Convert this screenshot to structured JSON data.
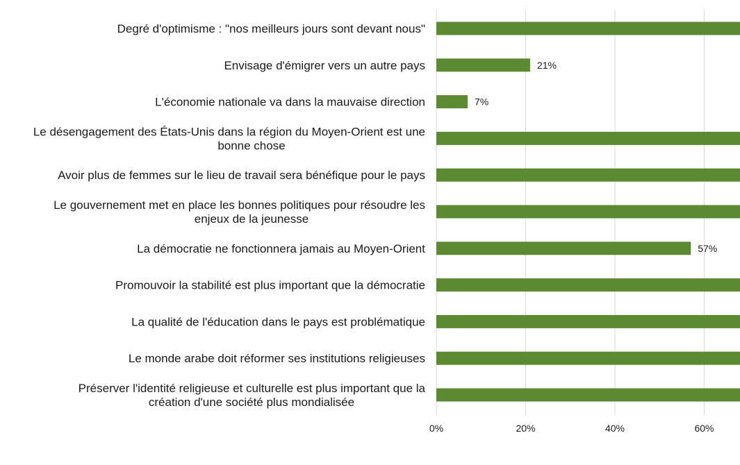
{
  "chart_data": {
    "type": "bar",
    "orientation": "horizontal",
    "categories": [
      "Degré d'optimisme : \"nos meilleurs jours sont devant nous\"",
      "Envisage d'émigrer vers un autre pays",
      "L'économie nationale va dans la mauvaise direction",
      "Le désengagement des États-Unis dans la région du Moyen-Orient est une bonne chose",
      "Avoir plus de femmes sur le lieu de travail sera bénéfique pour le pays",
      "Le gouvernement met en place les bonnes politiques pour résoudre les enjeux de la jeunesse",
      "La démocratie ne fonctionnera jamais au Moyen-Orient",
      "Promouvoir la stabilité est plus important que la démocratie",
      "La qualité de l'éducation dans le pays est problématique",
      "Le monde arabe doit réformer ses institutions religieuses",
      "Préserver l'identité religieuse et culturelle est plus important que la création d'une société plus mondialisée"
    ],
    "category_lines": [
      [
        "Degré d'optimisme : \"nos meilleurs jours sont devant nous\""
      ],
      [
        "Envisage d'émigrer vers un autre pays"
      ],
      [
        "L'économie nationale va dans la mauvaise direction"
      ],
      [
        "Le désengagement des États-Unis dans la région du Moyen-Orient est une",
        "bonne chose"
      ],
      [
        "Avoir plus de femmes sur le lieu de travail sera bénéfique pour le pays"
      ],
      [
        "Le gouvernement met en place les bonnes politiques pour résoudre les",
        "enjeux de la jeunesse"
      ],
      [
        "La démocratie ne fonctionnera jamais au Moyen-Orient"
      ],
      [
        "Promouvoir la stabilité est plus important que la démocratie"
      ],
      [
        "La qualité de l'éducation dans le pays est problématique"
      ],
      [
        "Le monde arabe doit réformer ses institutions religieuses"
      ],
      [
        "Préserver l'identité religieuse et culturelle est plus important que la",
        "création d'une société plus mondialisée"
      ]
    ],
    "values": [
      70,
      21,
      7,
      70,
      70,
      70,
      57,
      70,
      70,
      70,
      70
    ],
    "data_labels": [
      "",
      "21%",
      "7%",
      "",
      "",
      "",
      "57%",
      "",
      "",
      "",
      ""
    ],
    "xlim": [
      0,
      70
    ],
    "x_ticks": [
      0,
      20,
      40,
      60
    ],
    "x_tick_labels": [
      "0%",
      "20%",
      "40%",
      "60%"
    ],
    "grid": "vertical",
    "legend": "none",
    "title": "",
    "xlabel": "",
    "ylabel": "",
    "colors": {
      "bar": "#5b8a32",
      "grid": "#d9d9d9",
      "text": "#1a1a1a"
    }
  }
}
